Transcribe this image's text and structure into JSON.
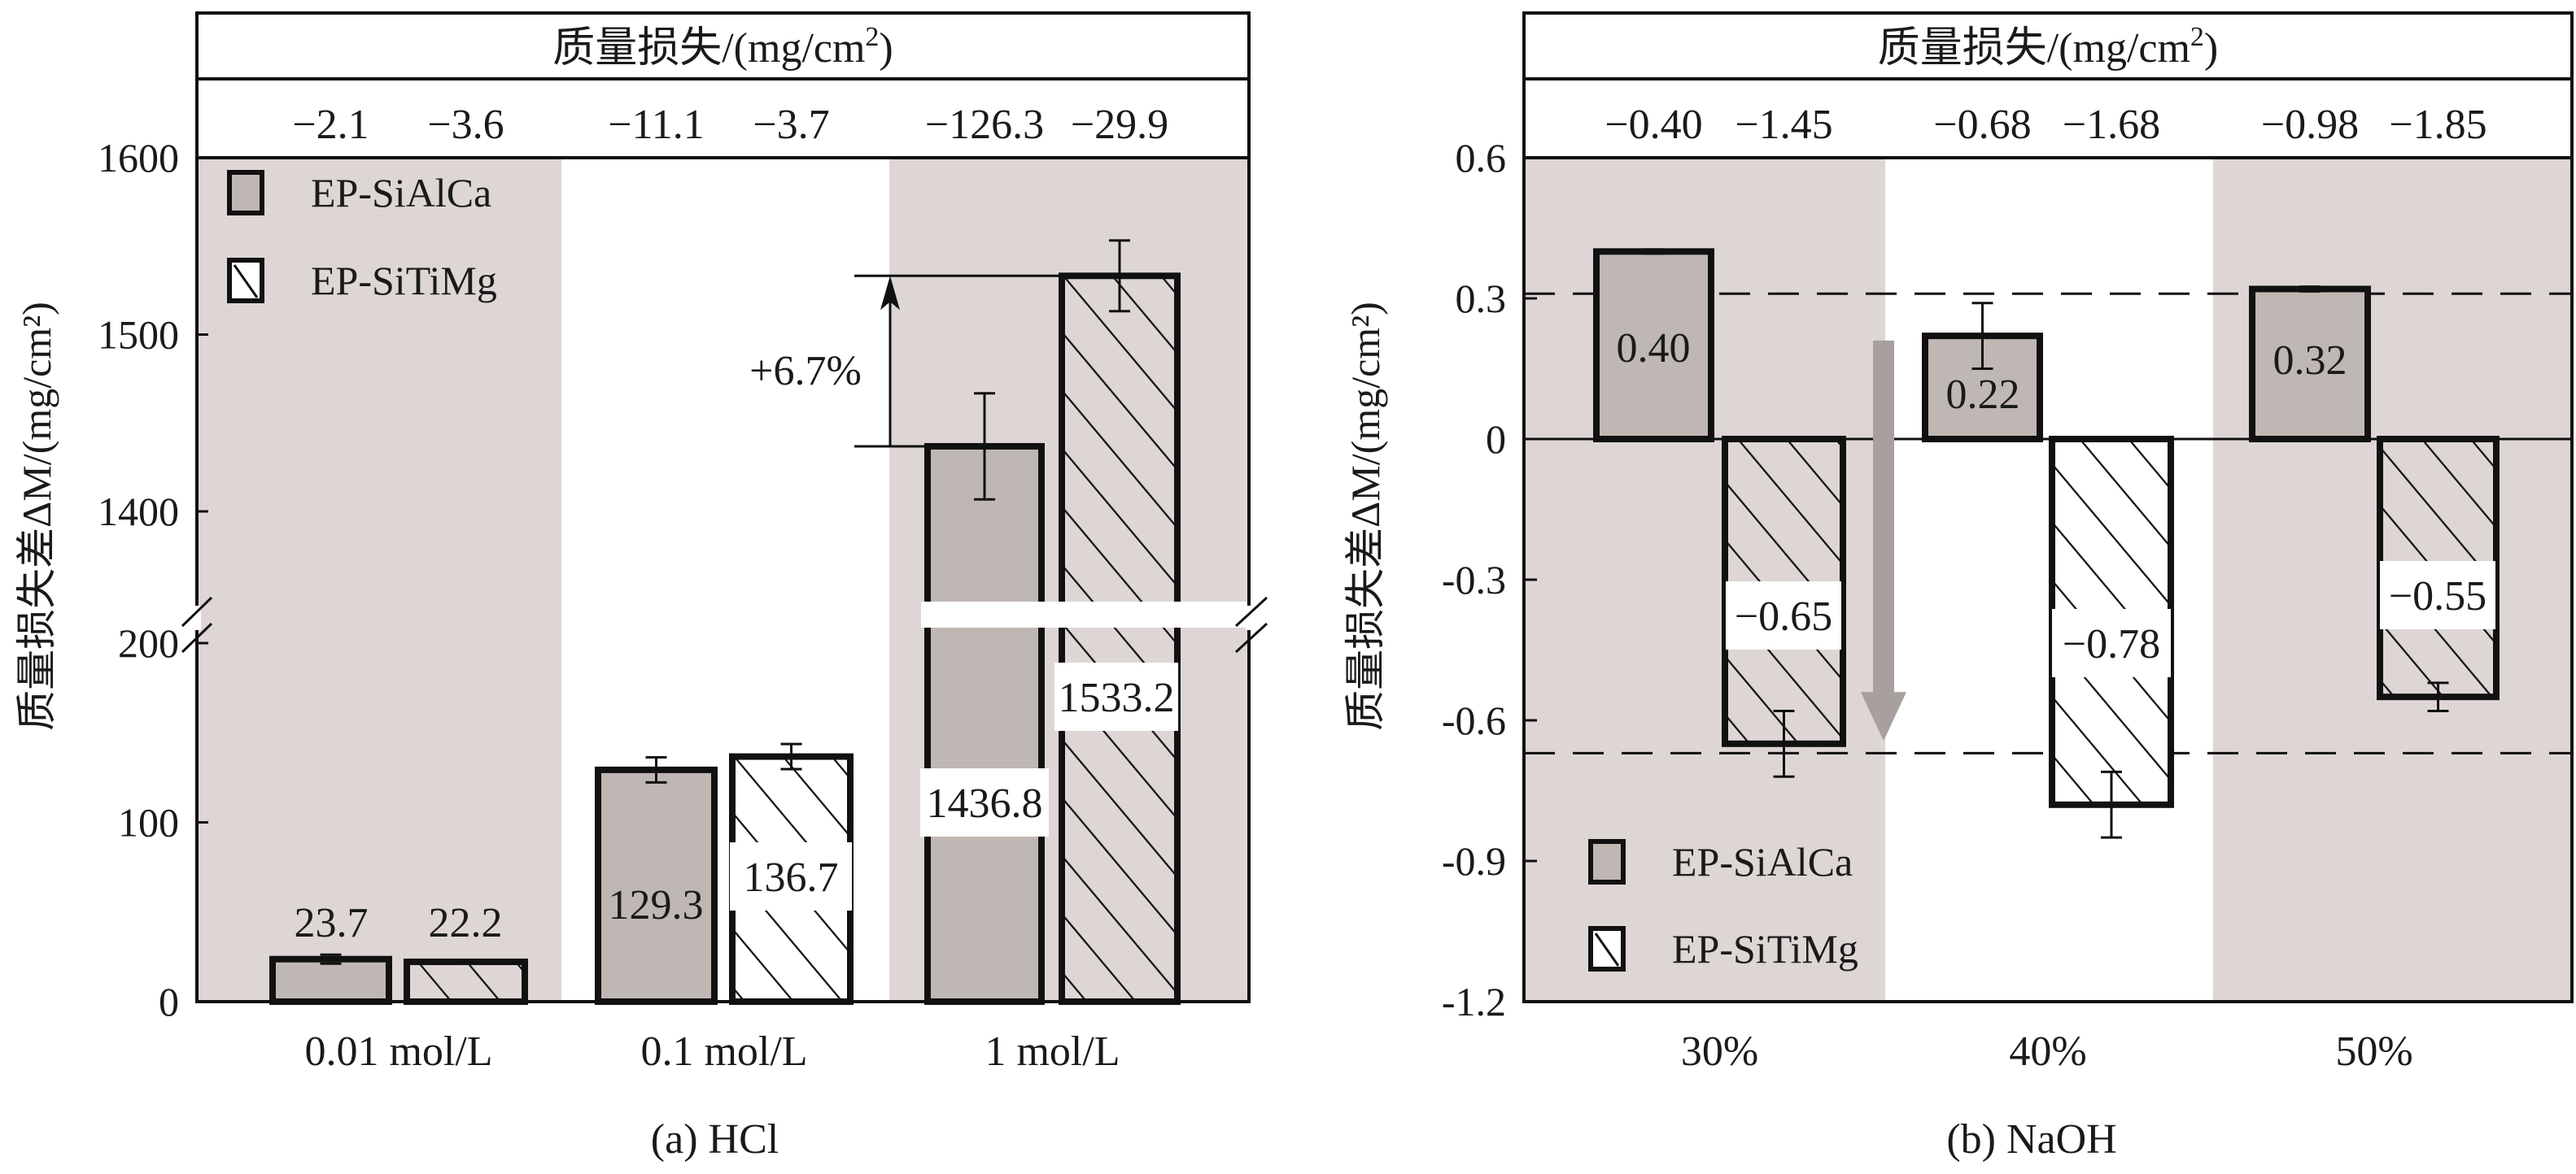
{
  "colors": {
    "shade_band": "#ddd6d4",
    "bar_solid": "#bfb7b3",
    "hatch_line": "#111111",
    "outline": "#111111",
    "arrow_gray": "#a8a09e"
  },
  "chart_data": [
    {
      "type": "bar",
      "panel_caption": "(a) HCl",
      "header_title": "质量损失/(mg/cm²)",
      "header_title_main": "质量损失/(mg/cm",
      "header_title_sup": "2",
      "header_title_end": ")",
      "header_values": [
        "−2.1",
        "−3.6",
        "−11.1",
        "−3.7",
        "−126.3",
        "−29.9"
      ],
      "ylabel": "质量损失差ΔM/(mg/cm²)",
      "categories": [
        "0.01 mol/L",
        "0.1 mol/L",
        "1 mol/L"
      ],
      "shaded_groups": [
        true,
        false,
        true
      ],
      "series": [
        {
          "name": "EP-SiAlCa",
          "pattern": "solid",
          "values": [
            23.7,
            129.3,
            1436.8
          ],
          "errors": [
            2.5,
            7,
            30
          ],
          "labels": [
            "23.7",
            "129.3",
            "1436.8"
          ]
        },
        {
          "name": "EP-SiTiMg",
          "pattern": "hatch",
          "values": [
            22.2,
            136.7,
            1533.2
          ],
          "errors": [
            1,
            7,
            20
          ],
          "labels": [
            "22.2",
            "136.7",
            "1533.2"
          ]
        }
      ],
      "y_axis_break": {
        "lower_range": [
          0,
          210
        ],
        "upper_range": [
          1380,
          1600
        ]
      },
      "yticks_lower": [
        0,
        100,
        200
      ],
      "yticks_upper": [
        1400,
        1500,
        1600
      ],
      "ytick_labels_lower": [
        "0",
        "100",
        "200"
      ],
      "ytick_labels_upper": [
        "1400",
        "1500",
        "1600"
      ],
      "annotation": {
        "text": "+6.7%",
        "from_value": 1436.8,
        "to_value": 1533.2
      },
      "legend": {
        "position": "top-left",
        "entries": [
          "EP-SiAlCa",
          "EP-SiTiMg"
        ]
      },
      "grid": false
    },
    {
      "type": "bar",
      "panel_caption": "(b) NaOH",
      "header_title": "质量损失/(mg/cm²)",
      "header_title_main": "质量损失/(mg/cm",
      "header_title_sup": "2",
      "header_title_end": ")",
      "header_values": [
        "−0.40",
        "−1.45",
        "−0.68",
        "−1.68",
        "−0.98",
        "−1.85"
      ],
      "ylabel": "质量损失差ΔM/(mg/cm²)",
      "categories": [
        "30%",
        "40%",
        "50%"
      ],
      "shaded_groups": [
        true,
        false,
        true
      ],
      "series": [
        {
          "name": "EP-SiAlCa",
          "pattern": "solid",
          "values": [
            0.4,
            0.22,
            0.32
          ],
          "errors": [
            0,
            0.07,
            0.005
          ],
          "labels": [
            "0.40",
            "0.22",
            "0.32"
          ]
        },
        {
          "name": "EP-SiTiMg",
          "pattern": "hatch",
          "values": [
            -0.65,
            -0.78,
            -0.55
          ],
          "errors": [
            0.07,
            0.07,
            0.03
          ],
          "labels": [
            "−0.65",
            "−0.78",
            "−0.55"
          ]
        }
      ],
      "ylim": [
        -1.2,
        0.6
      ],
      "yticks": [
        0.6,
        0.3,
        0,
        -0.3,
        -0.6,
        -0.9,
        -1.2
      ],
      "ytick_labels": [
        "0.6",
        "0.3",
        "0",
        "-0.3",
        "-0.6",
        "-0.9",
        "-1.2"
      ],
      "reference_lines": [
        0.31,
        -0.67
      ],
      "trend_arrow": {
        "from_value": 0.21,
        "to_value": -0.63,
        "direction": "down"
      },
      "legend": {
        "position": "bottom-left",
        "entries": [
          "EP-SiAlCa",
          "EP-SiTiMg"
        ]
      },
      "grid": false
    }
  ]
}
